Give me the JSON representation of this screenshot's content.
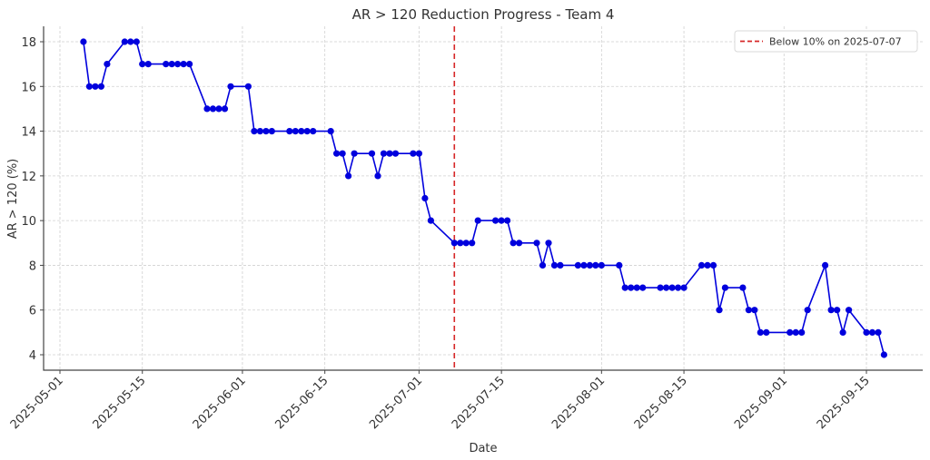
{
  "chart_data": {
    "type": "line",
    "title": "AR > 120 Reduction Progress - Team 4",
    "xlabel": "Date",
    "ylabel": "AR > 120 (%)",
    "ylim": [
      3.3,
      18.7
    ],
    "yticks": [
      4,
      6,
      8,
      10,
      12,
      14,
      16,
      18
    ],
    "xlim": [
      "2025-04-28",
      "2025-09-26"
    ],
    "xticks": [
      "2025-05-01",
      "2025-05-15",
      "2025-06-01",
      "2025-06-15",
      "2025-07-01",
      "2025-07-15",
      "2025-08-01",
      "2025-08-15",
      "2025-09-01",
      "2025-09-15"
    ],
    "grid": true,
    "legend_position": "upper right",
    "series": [
      {
        "name": "AR > 120 (%)",
        "color": "#0000dd",
        "marker": "circle",
        "x": [
          "2025-05-05",
          "2025-05-06",
          "2025-05-07",
          "2025-05-08",
          "2025-05-09",
          "2025-05-12",
          "2025-05-13",
          "2025-05-14",
          "2025-05-15",
          "2025-05-16",
          "2025-05-19",
          "2025-05-20",
          "2025-05-21",
          "2025-05-22",
          "2025-05-23",
          "2025-05-26",
          "2025-05-27",
          "2025-05-28",
          "2025-05-29",
          "2025-05-30",
          "2025-06-02",
          "2025-06-03",
          "2025-06-04",
          "2025-06-05",
          "2025-06-06",
          "2025-06-09",
          "2025-06-10",
          "2025-06-11",
          "2025-06-12",
          "2025-06-13",
          "2025-06-16",
          "2025-06-17",
          "2025-06-18",
          "2025-06-19",
          "2025-06-20",
          "2025-06-23",
          "2025-06-24",
          "2025-06-25",
          "2025-06-26",
          "2025-06-27",
          "2025-06-30",
          "2025-07-01",
          "2025-07-02",
          "2025-07-03",
          "2025-07-07",
          "2025-07-08",
          "2025-07-09",
          "2025-07-10",
          "2025-07-11",
          "2025-07-14",
          "2025-07-15",
          "2025-07-16",
          "2025-07-17",
          "2025-07-18",
          "2025-07-21",
          "2025-07-22",
          "2025-07-23",
          "2025-07-24",
          "2025-07-25",
          "2025-07-28",
          "2025-07-29",
          "2025-07-30",
          "2025-07-31",
          "2025-08-01",
          "2025-08-04",
          "2025-08-05",
          "2025-08-06",
          "2025-08-07",
          "2025-08-08",
          "2025-08-11",
          "2025-08-12",
          "2025-08-13",
          "2025-08-14",
          "2025-08-15",
          "2025-08-18",
          "2025-08-19",
          "2025-08-20",
          "2025-08-21",
          "2025-08-22",
          "2025-08-25",
          "2025-08-26",
          "2025-08-27",
          "2025-08-28",
          "2025-08-29",
          "2025-09-02",
          "2025-09-03",
          "2025-09-04",
          "2025-09-05",
          "2025-09-08",
          "2025-09-09",
          "2025-09-10",
          "2025-09-11",
          "2025-09-12",
          "2025-09-15",
          "2025-09-16",
          "2025-09-17",
          "2025-09-18"
        ],
        "values": [
          18,
          16,
          16,
          16,
          17,
          18,
          18,
          18,
          17,
          17,
          17,
          17,
          17,
          17,
          17,
          15,
          15,
          15,
          15,
          16,
          16,
          14,
          14,
          14,
          14,
          14,
          14,
          14,
          14,
          14,
          14,
          13,
          13,
          12,
          13,
          13,
          12,
          13,
          13,
          13,
          13,
          13,
          11,
          10,
          9,
          9,
          9,
          9,
          10,
          10,
          10,
          10,
          9,
          9,
          9,
          8,
          9,
          8,
          8,
          8,
          8,
          8,
          8,
          8,
          8,
          7,
          7,
          7,
          7,
          7,
          7,
          7,
          7,
          7,
          8,
          8,
          8,
          6,
          7,
          7,
          6,
          6,
          5,
          5,
          5,
          5,
          5,
          6,
          8,
          6,
          6,
          5,
          6,
          5,
          5,
          5,
          4
        ]
      }
    ],
    "annotations": [
      {
        "type": "vline",
        "x": "2025-07-07",
        "color": "#d62728",
        "style": "dashed",
        "label": "Below 10% on 2025-07-07"
      }
    ]
  },
  "legend": {
    "items": [
      {
        "label": "Below 10% on 2025-07-07",
        "color": "#d62728",
        "style": "dashed"
      }
    ]
  }
}
